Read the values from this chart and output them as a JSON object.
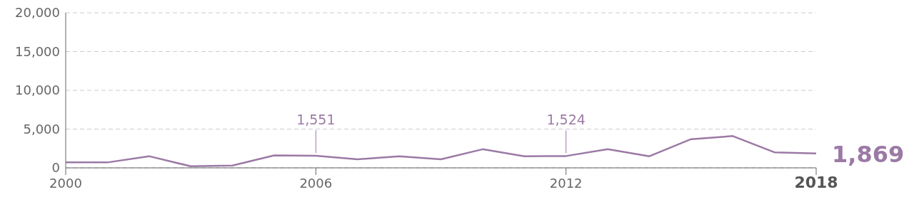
{
  "chart_data": {
    "type": "line",
    "x": [
      2000,
      2001,
      2002,
      2003,
      2004,
      2005,
      2006,
      2007,
      2008,
      2009,
      2010,
      2011,
      2012,
      2013,
      2014,
      2015,
      2016,
      2017,
      2018
    ],
    "series": [
      {
        "color": "#9b79a5",
        "values": [
          700,
          700,
          1500,
          200,
          300,
          1600,
          1551,
          1100,
          1500,
          1100,
          2400,
          1500,
          1524,
          2400,
          1500,
          3700,
          4100,
          2000,
          1869
        ]
      }
    ],
    "xlim": [
      2000,
      2018
    ],
    "xticks": [
      2000,
      2006,
      2012,
      2018
    ],
    "ylim": [
      0,
      20000
    ],
    "yticks": [
      {
        "value": 0,
        "label": "0"
      },
      {
        "value": 5000,
        "label": "5,000"
      },
      {
        "value": 10000,
        "label": "10,000"
      },
      {
        "value": 15000,
        "label": "15,000"
      },
      {
        "value": 20000,
        "label": "20,000"
      }
    ],
    "grid": "y",
    "marker": "none",
    "line_style": "solid",
    "annotations": [
      {
        "text": "1,551",
        "x": 2006,
        "y": 1551
      },
      {
        "text": "1,524",
        "x": 2012,
        "y": 1524
      },
      {
        "text": "1,869",
        "x": 2018,
        "y": 1869
      }
    ]
  }
}
